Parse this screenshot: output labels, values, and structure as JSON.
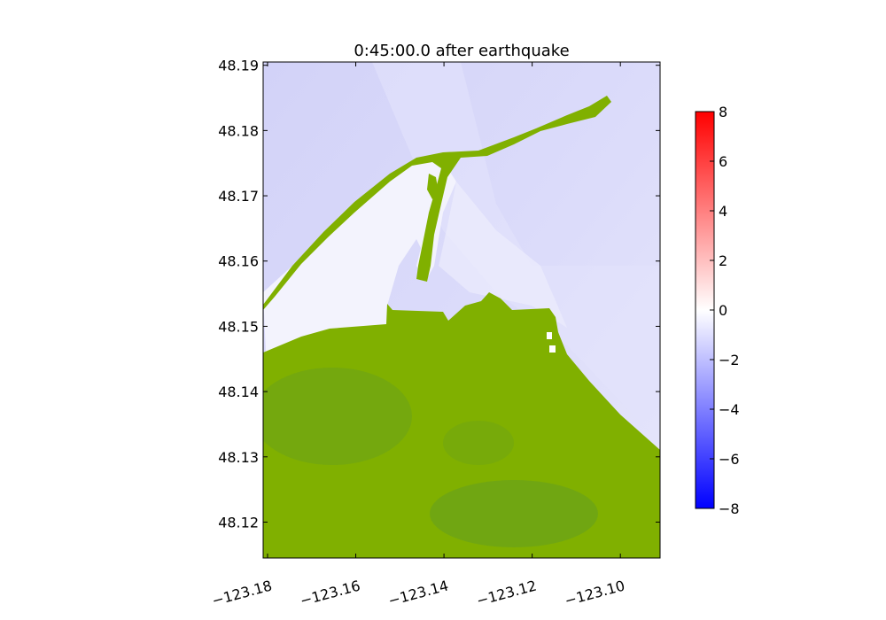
{
  "chart_data": {
    "type": "heatmap",
    "title": "0:45:00.0 after earthquake",
    "xlabel": "",
    "ylabel": "",
    "xlim": [
      -123.181,
      -123.091
    ],
    "ylim": [
      48.1145,
      48.1905
    ],
    "x_ticks": [
      -123.18,
      -123.16,
      -123.14,
      -123.12,
      -123.1
    ],
    "x_tick_labels": [
      "−123.18",
      "−123.16",
      "−123.14",
      "−123.12",
      "−123.10"
    ],
    "y_ticks": [
      48.12,
      48.13,
      48.14,
      48.15,
      48.16,
      48.17,
      48.18,
      48.19
    ],
    "y_tick_labels": [
      "48.12",
      "48.13",
      "48.14",
      "48.15",
      "48.16",
      "48.17",
      "48.18",
      "48.19"
    ],
    "grid": false,
    "land_color": "#80b000",
    "land_shade_color": "#6aa21a",
    "colorbar": {
      "label": "",
      "range": [
        -8,
        8
      ],
      "ticks": [
        -8,
        -6,
        -4,
        -2,
        0,
        2,
        4,
        6,
        8
      ],
      "tick_labels": [
        "−8",
        "−6",
        "−4",
        "−2",
        "0",
        "2",
        "4",
        "6",
        "8"
      ],
      "colormap": "bwr",
      "low_color": "#0000ff",
      "mid_color": "#ffffff",
      "high_color": "#ff0000"
    },
    "surface_elevation_samples": [
      {
        "lon": -123.175,
        "lat": 48.185,
        "value": -1.2
      },
      {
        "lon": -123.15,
        "lat": 48.188,
        "value": -1.0
      },
      {
        "lon": -123.12,
        "lat": 48.175,
        "value": -0.8
      },
      {
        "lon": -123.1,
        "lat": 48.15,
        "value": -0.7
      },
      {
        "lon": -123.16,
        "lat": 48.16,
        "value": -0.2
      },
      {
        "lon": -123.14,
        "lat": 48.165,
        "value": -0.15
      }
    ]
  }
}
